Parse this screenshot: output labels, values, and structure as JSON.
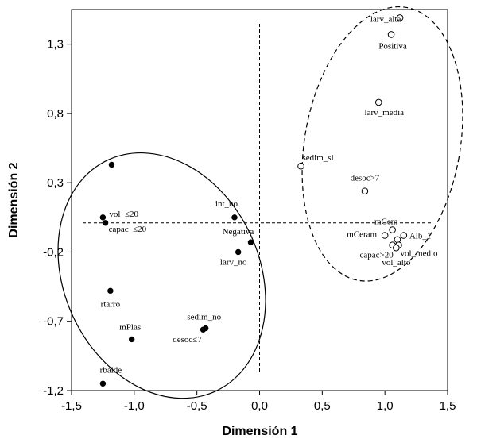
{
  "chart_data": {
    "type": "scatter",
    "title": "",
    "xlabel": "Dimensión 1",
    "ylabel": "Dimensión 2",
    "xlim": [
      -1.5,
      1.5
    ],
    "ylim": [
      -1.2,
      1.55
    ],
    "x_ticks": [
      {
        "value": -1.5,
        "label": "-1,5"
      },
      {
        "value": -1.0,
        "label": "-1,0"
      },
      {
        "value": -0.5,
        "label": "-0,5"
      },
      {
        "value": 0.0,
        "label": "0,0"
      },
      {
        "value": 0.5,
        "label": "0,5"
      },
      {
        "value": 1.0,
        "label": "1,0"
      },
      {
        "value": 1.5,
        "label": "1,5"
      }
    ],
    "y_ticks": [
      {
        "value": 1.3,
        "label": "1,3"
      },
      {
        "value": 0.8,
        "label": "0,8"
      },
      {
        "value": 0.3,
        "label": "0,3"
      },
      {
        "value": -0.2,
        "label": "-0,2"
      },
      {
        "value": -0.7,
        "label": "-0,7"
      },
      {
        "value": -1.2,
        "label": "-1,2"
      }
    ],
    "grid": false,
    "series": [
      {
        "marker": "filled",
        "color": "#000000",
        "points": [
          {
            "label": "",
            "x": -1.18,
            "y": 0.43
          },
          {
            "label": "vol_≤20",
            "x": -1.25,
            "y": 0.05
          },
          {
            "label": "capac_≤20",
            "x": -1.23,
            "y": 0.01
          },
          {
            "label": "int_no",
            "x": -0.2,
            "y": 0.05
          },
          {
            "label": "Negativa",
            "x": -0.07,
            "y": -0.13
          },
          {
            "label": "larv_no",
            "x": -0.17,
            "y": -0.2
          },
          {
            "label": "rtarro",
            "x": -1.19,
            "y": -0.48
          },
          {
            "label": "mPlas",
            "x": -1.02,
            "y": -0.83
          },
          {
            "label": "sedim_no",
            "x": -0.43,
            "y": -0.75
          },
          {
            "label": "desoc≤7",
            "x": -0.45,
            "y": -0.76
          },
          {
            "label": "rbalde",
            "x": -1.25,
            "y": -1.15
          }
        ]
      },
      {
        "marker": "open",
        "color": "#000000",
        "points": [
          {
            "label": "larv_alta",
            "x": 1.12,
            "y": 1.49
          },
          {
            "label": "Positiva",
            "x": 1.05,
            "y": 1.37
          },
          {
            "label": "larv_media",
            "x": 0.95,
            "y": 0.88
          },
          {
            "label": "sedim_si",
            "x": 0.33,
            "y": 0.42
          },
          {
            "label": "desoc>7",
            "x": 0.84,
            "y": 0.24
          },
          {
            "label": "mCem",
            "x": 1.06,
            "y": -0.04
          },
          {
            "label": "Alb_1",
            "x": 1.15,
            "y": -0.08
          },
          {
            "label": "mCeram",
            "x": 1.0,
            "y": -0.08
          },
          {
            "label": "",
            "x": 1.1,
            "y": -0.11
          },
          {
            "label": "capac>20",
            "x": 1.06,
            "y": -0.15
          },
          {
            "label": "vol_medio",
            "x": 1.11,
            "y": -0.15
          },
          {
            "label": "vol_alto",
            "x": 1.09,
            "y": -0.17
          }
        ]
      }
    ],
    "reference_lines": {
      "x": 0.0,
      "y": 0.01,
      "style": "dashed"
    },
    "groups": [
      {
        "shape": "ellipse",
        "style": "solid",
        "cx": -0.78,
        "cy": -0.37,
        "rx": 0.78,
        "ry": 0.92,
        "rotation_deg": -25
      },
      {
        "shape": "ellipse",
        "style": "dashed",
        "cx": 0.98,
        "cy": 0.58,
        "rx": 0.62,
        "ry": 1.0,
        "rotation_deg": 10
      }
    ]
  }
}
